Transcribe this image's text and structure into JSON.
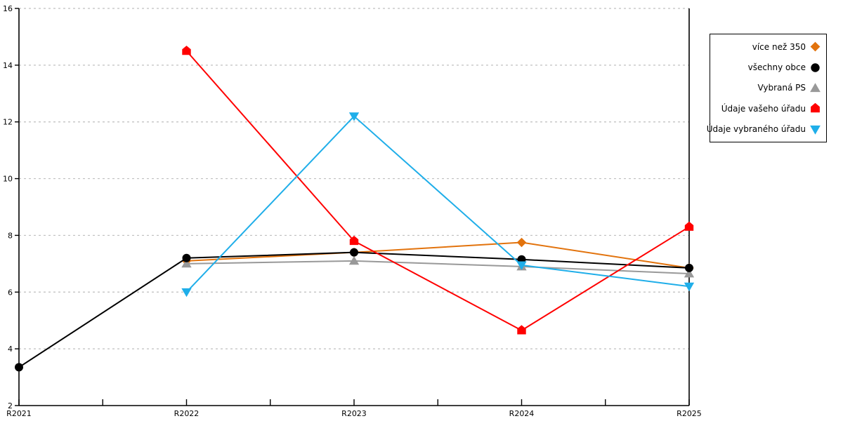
{
  "chart_data": {
    "type": "line",
    "title": "",
    "xlabel": "",
    "ylabel": "",
    "categories": [
      "R2021",
      "R2022",
      "R2023",
      "R2024",
      "R2025"
    ],
    "series": [
      {
        "name": "více než 350",
        "color": "#E2730D",
        "marker": "diamond",
        "values": [
          null,
          7.1,
          7.4,
          7.75,
          6.85
        ]
      },
      {
        "name": "všechny obce",
        "color": "#000000",
        "marker": "circle",
        "values": [
          3.35,
          7.2,
          7.4,
          7.15,
          6.85
        ]
      },
      {
        "name": "Vybraná PS",
        "color": "#999999",
        "marker": "triangle-up",
        "values": [
          null,
          7.0,
          7.1,
          6.9,
          6.65
        ]
      },
      {
        "name": "Údaje vašeho úřadu",
        "color": "#FF0000",
        "marker": "pentagon",
        "values": [
          null,
          14.5,
          7.8,
          4.65,
          8.3
        ]
      },
      {
        "name": "Údaje vybraného úřadu",
        "color": "#1FAEE9",
        "marker": "triangle-down",
        "values": [
          null,
          6.0,
          12.2,
          6.95,
          6.2
        ]
      }
    ],
    "draw_order": [
      0,
      2,
      1,
      3,
      4
    ],
    "ylim": [
      2,
      16
    ],
    "ytick_labels": [
      "2",
      "4",
      "6",
      "8",
      "10",
      "12",
      "14",
      "16"
    ],
    "grid": "horizontal-dashed",
    "grid_color": "#BFBFBF",
    "axis_color": "#000000",
    "legend_position": "right-top",
    "legend_border_color": "#000000",
    "background_color": "#ffffff"
  }
}
